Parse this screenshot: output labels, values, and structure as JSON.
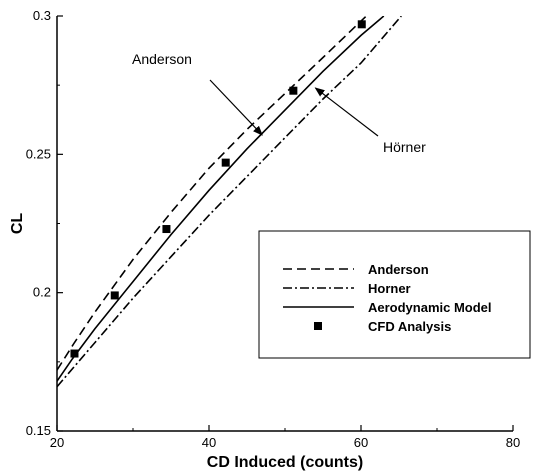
{
  "chart_data": {
    "type": "line",
    "xlabel": "CD Induced (counts)",
    "ylabel": "CL",
    "xlim": [
      20,
      80
    ],
    "ylim": [
      0.15,
      0.3
    ],
    "xticks": [
      20,
      40,
      60,
      80
    ],
    "yticks": [
      0.15,
      0.2,
      0.25,
      0.3
    ],
    "xtick_labels": [
      "20",
      "40",
      "60",
      "80"
    ],
    "ytick_labels": [
      "0.15",
      "0.2",
      "0.25",
      "0.3"
    ],
    "grid": false,
    "legend_placement": "lower-right",
    "series": [
      {
        "name": "Anderson",
        "style": "dashed",
        "x": [
          20,
          22.3,
          25,
          30,
          35,
          40,
          45,
          50,
          55,
          60.7
        ],
        "y": [
          0.172,
          0.182,
          0.193,
          0.212,
          0.229,
          0.245,
          0.259,
          0.272,
          0.285,
          0.3
        ]
      },
      {
        "name": "Horner",
        "style": "dashdot",
        "x": [
          20,
          25,
          30,
          35,
          40,
          45,
          50,
          55,
          60,
          65.3
        ],
        "y": [
          0.166,
          0.182,
          0.198,
          0.213,
          0.228,
          0.242,
          0.256,
          0.27,
          0.283,
          0.3
        ]
      },
      {
        "name": "Aerodynamic Model",
        "style": "solid",
        "x": [
          20,
          22,
          25,
          30,
          35,
          40,
          45,
          50,
          55,
          60,
          63
        ],
        "y": [
          0.168,
          0.176,
          0.187,
          0.204,
          0.221,
          0.237,
          0.252,
          0.266,
          0.28,
          0.293,
          0.3
        ]
      },
      {
        "name": "CFD Analysis",
        "style": "markers",
        "x": [
          22.3,
          27.6,
          34.4,
          42.2,
          51.1,
          60.1
        ],
        "y": [
          0.178,
          0.199,
          0.223,
          0.247,
          0.273,
          0.297
        ]
      }
    ],
    "annotations": [
      {
        "text": "Anderson",
        "arrow_to": [
          47,
          0.257
        ]
      },
      {
        "text": "Hörner",
        "arrow_to": [
          54,
          0.274
        ]
      }
    ]
  }
}
